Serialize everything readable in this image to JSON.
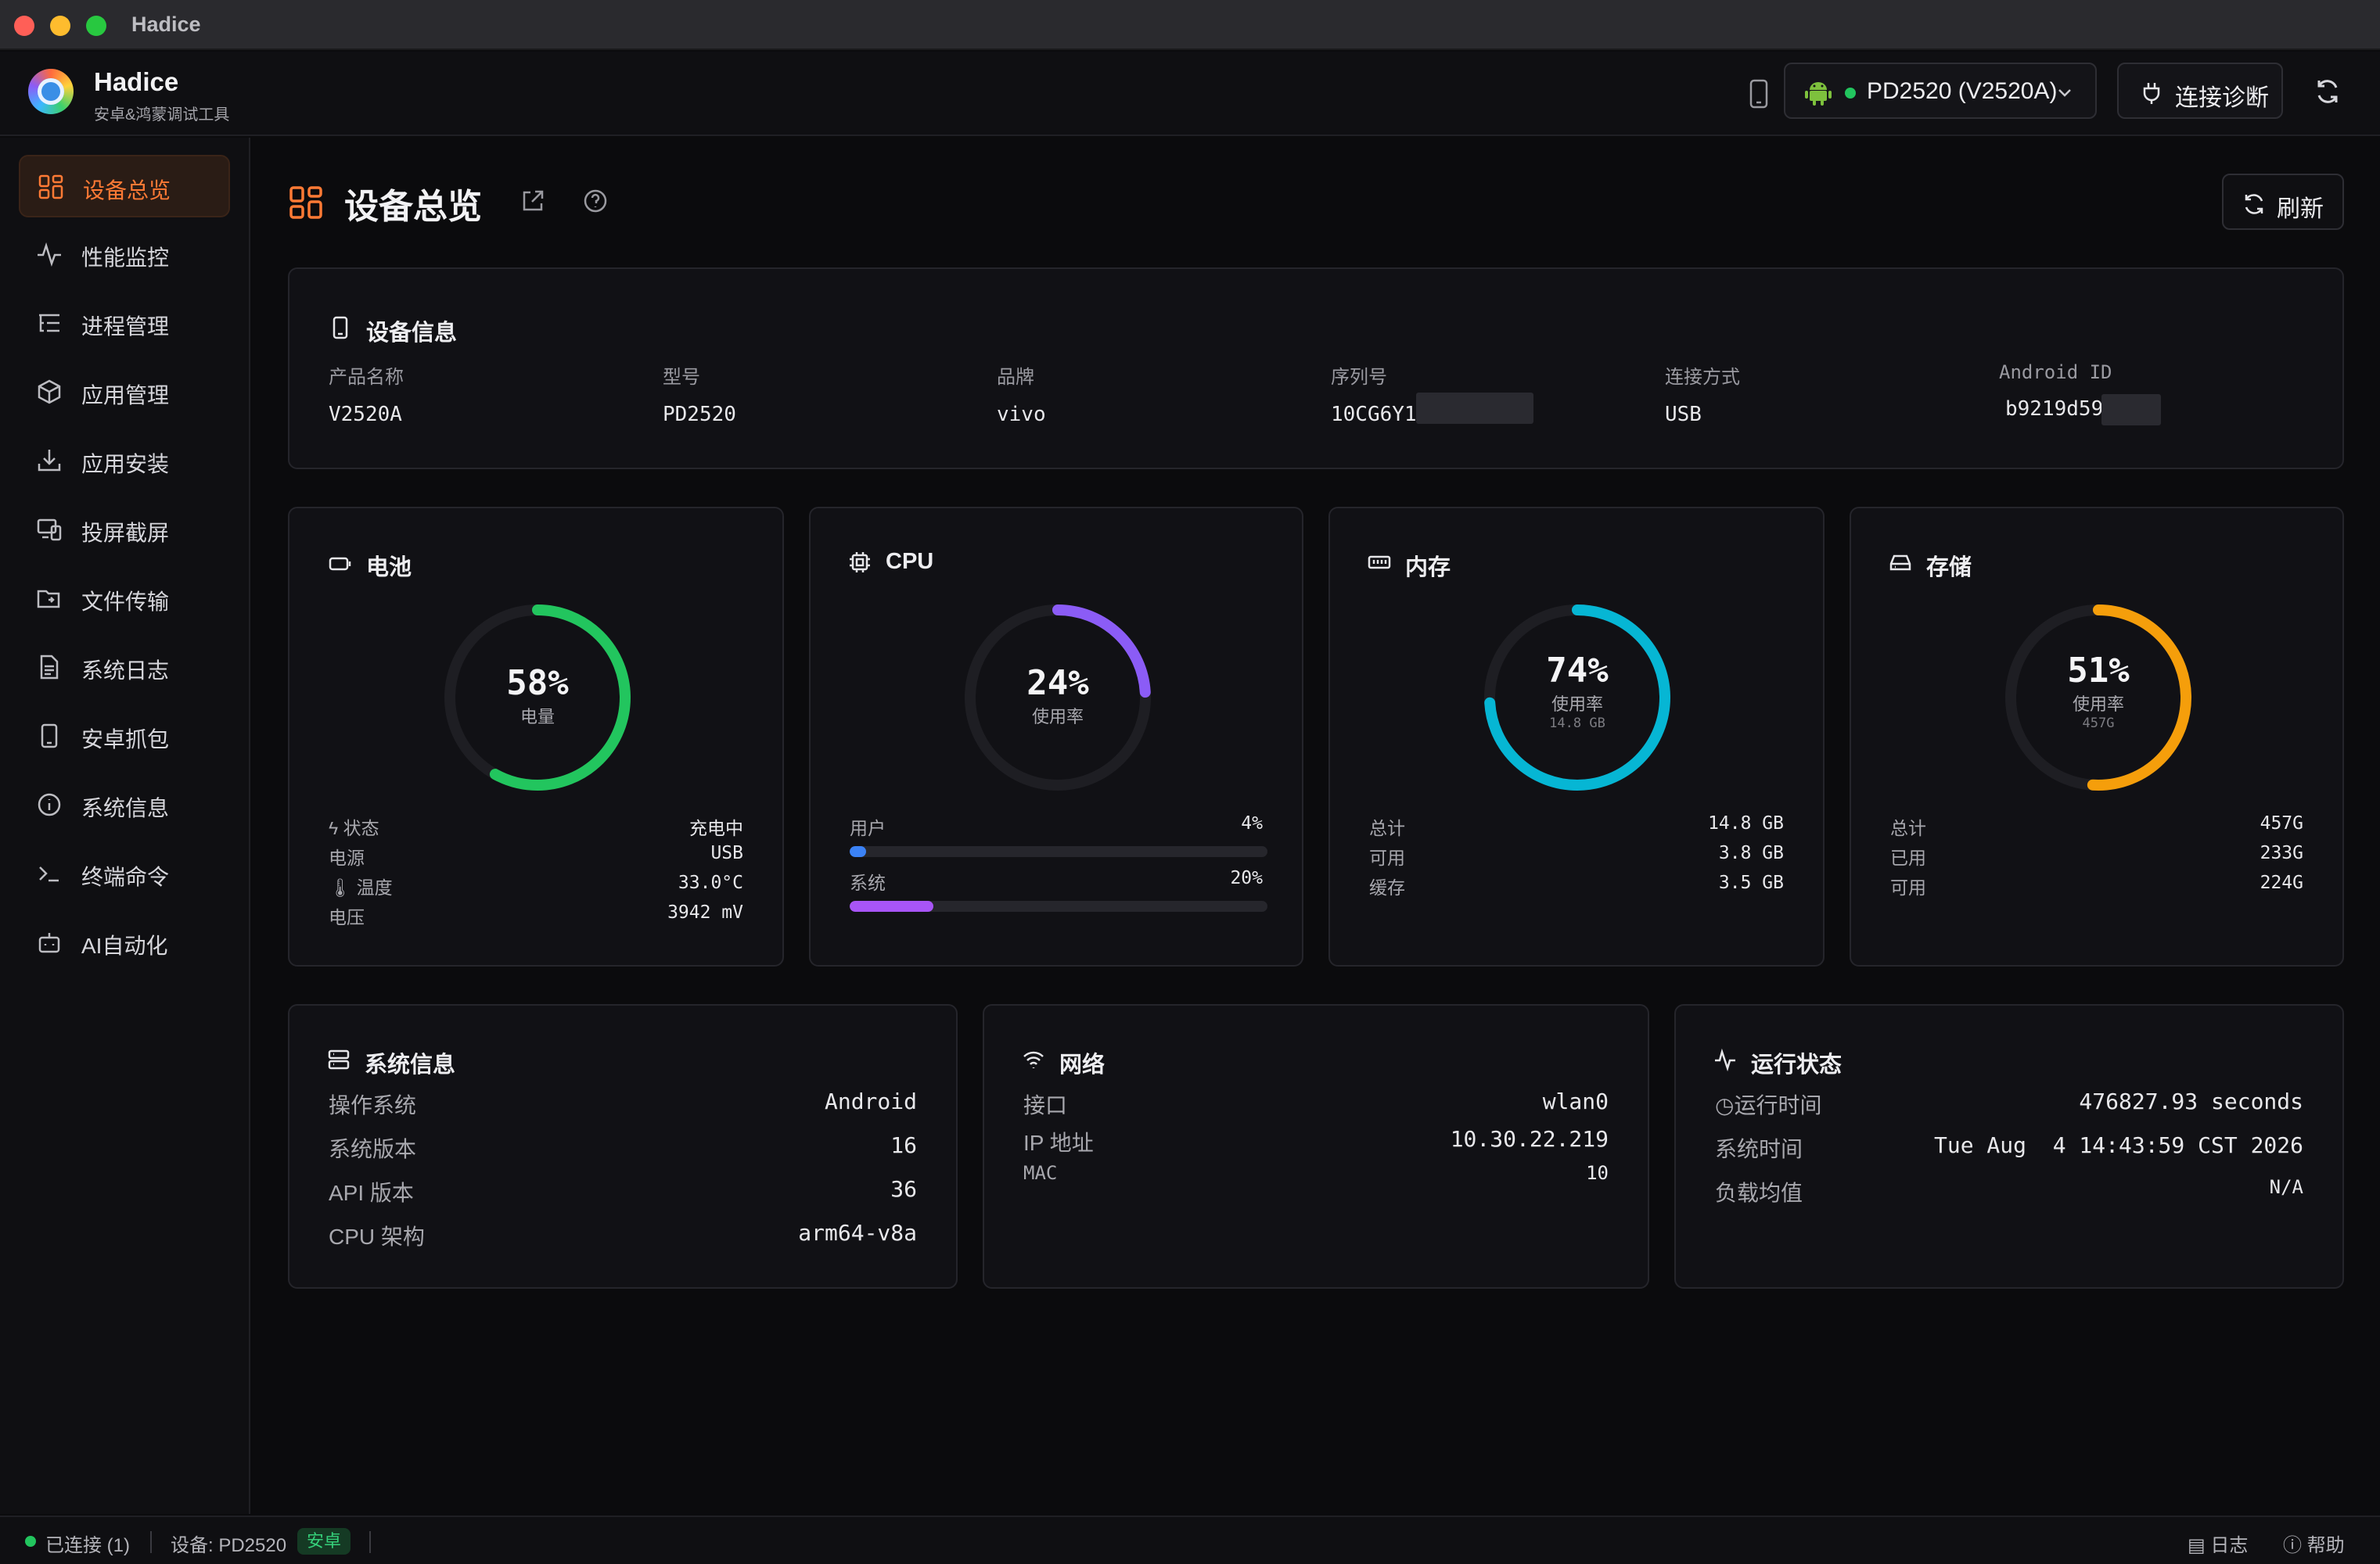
{
  "window": {
    "title": "Hadice"
  },
  "header": {
    "app_name": "Hadice",
    "app_subtitle": "安卓&鸿蒙调试工具",
    "device_name": "PD2520 (V2520A)",
    "diagnose_label": "连接诊断"
  },
  "sidebar": {
    "items": [
      {
        "label": "设备总览",
        "icon": "grid-icon",
        "active": true
      },
      {
        "label": "性能监控",
        "icon": "activity-icon"
      },
      {
        "label": "进程管理",
        "icon": "list-tree-icon"
      },
      {
        "label": "应用管理",
        "icon": "package-icon"
      },
      {
        "label": "应用安装",
        "icon": "download-icon"
      },
      {
        "label": "投屏截屏",
        "icon": "screen-cast-icon"
      },
      {
        "label": "文件传输",
        "icon": "folder-transfer-icon"
      },
      {
        "label": "系统日志",
        "icon": "file-text-icon"
      },
      {
        "label": "安卓抓包",
        "icon": "phone-icon"
      },
      {
        "label": "系统信息",
        "icon": "info-icon"
      },
      {
        "label": "终端命令",
        "icon": "terminal-icon"
      },
      {
        "label": "AI自动化",
        "icon": "bot-icon"
      }
    ]
  },
  "page": {
    "title": "设备总览",
    "refresh_label": "刷新"
  },
  "device_info": {
    "title": "设备信息",
    "fields": [
      {
        "key": "产品名称",
        "value": "V2520A"
      },
      {
        "key": "型号",
        "value": "PD2520"
      },
      {
        "key": "品牌",
        "value": "vivo"
      },
      {
        "key": "序列号",
        "value": "10CG6Y1"
      },
      {
        "key": "连接方式",
        "value": "USB"
      },
      {
        "key": "Android ID",
        "value": "b9219d59"
      }
    ]
  },
  "battery": {
    "title": "电池",
    "percent": 58,
    "percent_text": "58%",
    "sub": "电量",
    "color": "#22c55e",
    "rows": [
      {
        "key": "状态",
        "value": "充电中",
        "icon": "charging-icon"
      },
      {
        "key": "电源",
        "value": "USB"
      },
      {
        "key": "温度",
        "value": "33.0°C",
        "icon": "thermometer-icon"
      },
      {
        "key": "电压",
        "value": "3942 mV"
      }
    ]
  },
  "cpu": {
    "title": "CPU",
    "percent": 24,
    "percent_text": "24%",
    "sub": "使用率",
    "color": "#8b5cf6",
    "bars": [
      {
        "label": "用户",
        "value_text": "4%",
        "value": 4,
        "color": "#3b82f6"
      },
      {
        "label": "系统",
        "value_text": "20%",
        "value": 20,
        "color": "#a855f7"
      }
    ]
  },
  "memory": {
    "title": "内存",
    "percent": 74,
    "percent_text": "74%",
    "sub": "使用率",
    "tiny": "14.8 GB",
    "color": "#06b6d4",
    "rows": [
      {
        "key": "总计",
        "value": "14.8 GB"
      },
      {
        "key": "可用",
        "value": "3.8 GB"
      },
      {
        "key": "缓存",
        "value": "3.5 GB"
      }
    ]
  },
  "storage": {
    "title": "存储",
    "percent": 51,
    "percent_text": "51%",
    "sub": "使用率",
    "tiny": "457G",
    "color": "#f59e0b",
    "rows": [
      {
        "key": "总计",
        "value": "457G"
      },
      {
        "key": "已用",
        "value": "233G"
      },
      {
        "key": "可用",
        "value": "224G"
      }
    ]
  },
  "system_info": {
    "title": "系统信息",
    "rows": [
      {
        "key": "操作系统",
        "value": "Android"
      },
      {
        "key": "系统版本",
        "value": "16"
      },
      {
        "key": "API 版本",
        "value": "36"
      },
      {
        "key": "CPU 架构",
        "value": "arm64-v8a"
      }
    ]
  },
  "network": {
    "title": "网络",
    "rows": [
      {
        "key": "接口",
        "value": "wlan0"
      },
      {
        "key": "IP 地址",
        "value": "10.30.22.219"
      },
      {
        "key": "MAC",
        "value": "10"
      }
    ]
  },
  "runtime": {
    "title": "运行状态",
    "rows": [
      {
        "key": "运行时间",
        "value": "476827.93 seconds",
        "icon": "clock-icon"
      },
      {
        "key": "系统时间",
        "value": "Tue Aug  4 14:43:59 CST 2026"
      },
      {
        "key": "负载均值",
        "value": "N/A"
      }
    ]
  },
  "statusbar": {
    "connected": "已连接 (1)",
    "device": "设备: PD2520",
    "badge": "安卓",
    "log_label": "日志",
    "help_label": "帮助"
  }
}
